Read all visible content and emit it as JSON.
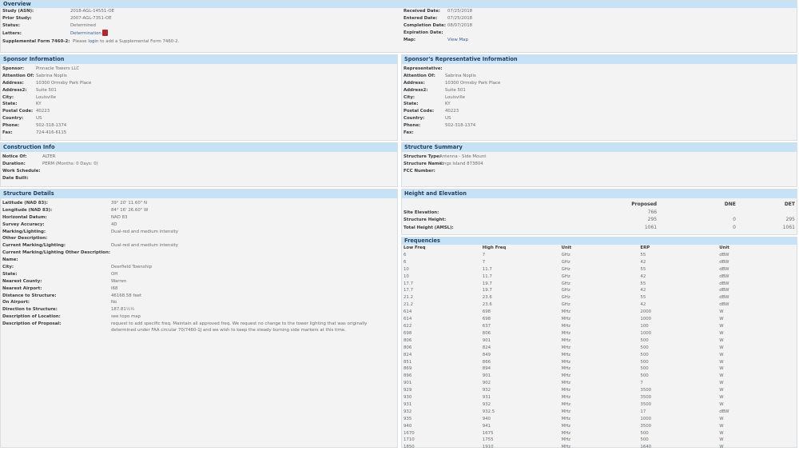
{
  "overview": {
    "title": "Overview",
    "left": [
      [
        "Study (ASN):",
        "2018-AGL-14551-OE"
      ],
      [
        "Prior Study:",
        "2007-AGL-7351-OE"
      ],
      [
        "Status:",
        "Determined"
      ]
    ],
    "letters_label": "Letters:",
    "letters_link": "Determination",
    "letters_icon": "pdf-icon",
    "supp_label": "Supplemental Form 7460-2:",
    "supp_pre": "Please ",
    "supp_link": "login",
    "supp_post": " to add a Supplemental Form 7460-2.",
    "right": [
      [
        "Received Date:",
        "07/25/2018"
      ],
      [
        "Entered Date:",
        "07/25/2018"
      ],
      [
        "Completion Date:",
        "08/07/2018"
      ],
      [
        "Expiration Date:",
        ""
      ]
    ],
    "map_label": "Map:",
    "map_link": "View Map"
  },
  "sponsor": {
    "title": "Sponsor Information",
    "rows": [
      [
        "Sponsor:",
        "Pinnacle Towers LLC"
      ],
      [
        "Attention Of:",
        "Sabrina Noplis"
      ],
      [
        "Address:",
        "10300 Ormsby Park Place"
      ],
      [
        "Address2:",
        "Suite 501"
      ],
      [
        "City:",
        "Louisville"
      ],
      [
        "State:",
        "KY"
      ],
      [
        "Postal Code:",
        "40223"
      ],
      [
        "Country:",
        "US"
      ],
      [
        "Phone:",
        "502-318-1374"
      ],
      [
        "Fax:",
        "724-416-6115"
      ]
    ]
  },
  "rep": {
    "title": "Sponsor's Representative Information",
    "rows": [
      [
        "Representative:",
        ""
      ],
      [
        "Attention Of:",
        "Sabrina Noplis"
      ],
      [
        "Address:",
        "10300 Ormsby Park Place"
      ],
      [
        "Address2:",
        "Suite 501"
      ],
      [
        "City:",
        "Louisville"
      ],
      [
        "State:",
        "KY"
      ],
      [
        "Postal Code:",
        "40223"
      ],
      [
        "Country:",
        "US"
      ],
      [
        "Phone:",
        "502-318-1374"
      ],
      [
        "Fax:",
        ""
      ]
    ]
  },
  "construction": {
    "title": "Construction Info",
    "rows": [
      [
        "Notice Of:",
        "ALTER"
      ],
      [
        "Duration:",
        "PERM    (Months: 0    Days: 0)"
      ],
      [
        "Work Schedule:",
        ""
      ],
      [
        "Date Built:",
        ""
      ]
    ]
  },
  "summary": {
    "title": "Structure Summary",
    "rows": [
      [
        "Structure Type:",
        "Antenna - Side Mount"
      ],
      [
        "Structure Name:",
        "Kings Island 873804"
      ],
      [
        "FCC Number:",
        ""
      ]
    ]
  },
  "details": {
    "title": "Structure Details",
    "rows": [
      [
        "Latitude (NAD 83):",
        "39° 20' 11.60\" N"
      ],
      [
        "Longitude (NAD 83):",
        "84° 16' 26.60\" W"
      ],
      [
        "Horizontal Datum:",
        "NAD 83"
      ],
      [
        "Survey Accuracy:",
        "4D"
      ],
      [
        "Marking/Lighting:",
        "Dual-red and medium intensity"
      ],
      [
        "Other Description:",
        ""
      ],
      [
        "Current Marking/Lighting:",
        "Dual-red and medium intensity"
      ],
      [
        "Current Marking/Lighting Other Description:",
        ""
      ],
      [
        "Name:",
        ""
      ],
      [
        "City:",
        "Deerfield Township"
      ],
      [
        "State:",
        "OH"
      ],
      [
        "Nearest County:",
        "Warren"
      ],
      [
        "Nearest Airport:",
        "I68"
      ],
      [
        "Distance to Structure:",
        "46168.58 feet"
      ],
      [
        "On Airport:",
        "No"
      ],
      [
        "Direction to Structure:",
        "187.81½½"
      ],
      [
        "Description of Location:",
        "see topo map"
      ],
      [
        "Description of Proposal:",
        "request to add specific freq. Maintain all approved freq. We request no change to the tower lighting that was originally determined under FAA circular 70/7460-1J and we wish to keep the steady burning side markers at this time."
      ]
    ]
  },
  "height": {
    "title": "Height and Elevation",
    "columns": [
      "",
      "Proposed",
      "DNE",
      "DET"
    ],
    "rows": [
      [
        "Site Elevation:",
        "766",
        "",
        ""
      ],
      [
        "Structure Height:",
        "295",
        "0",
        "295"
      ],
      [
        "Total Height (AMSL):",
        "1061",
        "0",
        "1061"
      ]
    ]
  },
  "frequencies": {
    "title": "Frequencies",
    "columns": [
      "Low Freq",
      "High Freq",
      "Unit",
      "ERP",
      "Unit"
    ],
    "rows": [
      [
        "6",
        "7",
        "GHz",
        "55",
        "dBW"
      ],
      [
        "6",
        "7",
        "GHz",
        "42",
        "dBW"
      ],
      [
        "10",
        "11.7",
        "GHz",
        "55",
        "dBW"
      ],
      [
        "10",
        "11.7",
        "GHz",
        "42",
        "dBW"
      ],
      [
        "17.7",
        "19.7",
        "GHz",
        "55",
        "dBW"
      ],
      [
        "17.7",
        "19.7",
        "GHz",
        "42",
        "dBW"
      ],
      [
        "21.2",
        "23.6",
        "GHz",
        "55",
        "dBW"
      ],
      [
        "21.2",
        "23.6",
        "GHz",
        "42",
        "dBW"
      ],
      [
        "614",
        "698",
        "MHz",
        "2000",
        "W"
      ],
      [
        "614",
        "698",
        "MHz",
        "1000",
        "W"
      ],
      [
        "622",
        "637",
        "MHz",
        "100",
        "W"
      ],
      [
        "698",
        "806",
        "MHz",
        "1000",
        "W"
      ],
      [
        "806",
        "901",
        "MHz",
        "500",
        "W"
      ],
      [
        "806",
        "824",
        "MHz",
        "500",
        "W"
      ],
      [
        "824",
        "849",
        "MHz",
        "500",
        "W"
      ],
      [
        "851",
        "866",
        "MHz",
        "500",
        "W"
      ],
      [
        "869",
        "894",
        "MHz",
        "500",
        "W"
      ],
      [
        "896",
        "901",
        "MHz",
        "500",
        "W"
      ],
      [
        "901",
        "902",
        "MHz",
        "7",
        "W"
      ],
      [
        "929",
        "932",
        "MHz",
        "3500",
        "W"
      ],
      [
        "930",
        "931",
        "MHz",
        "3500",
        "W"
      ],
      [
        "931",
        "932",
        "MHz",
        "3500",
        "W"
      ],
      [
        "932",
        "932.5",
        "MHz",
        "17",
        "dBW"
      ],
      [
        "935",
        "940",
        "MHz",
        "1000",
        "W"
      ],
      [
        "940",
        "941",
        "MHz",
        "3500",
        "W"
      ],
      [
        "1670",
        "1675",
        "MHz",
        "500",
        "W"
      ],
      [
        "1710",
        "1755",
        "MHz",
        "500",
        "W"
      ],
      [
        "1850",
        "1910",
        "MHz",
        "1640",
        "W"
      ]
    ]
  }
}
